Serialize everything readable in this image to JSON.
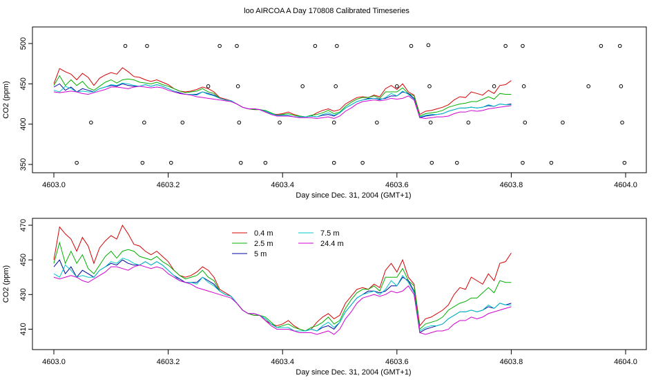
{
  "title": "loo AIRCOA A  Day 170808  Calibrated Timeseries",
  "colors": {
    "h04": "#d40000",
    "h25": "#00b000",
    "h5": "#0000a0",
    "h75": "#00c8c8",
    "h244": "#d000d0",
    "marker": "#000000"
  },
  "chart_data": [
    {
      "type": "line",
      "xlabel": "Day since Dec. 31, 2004 (GMT+1)",
      "ylabel": "CO2 (ppm)",
      "xlim": [
        4603.0,
        4604.0
      ],
      "ylim": [
        350,
        500
      ],
      "xticks": [
        4603.0,
        4603.2,
        4603.4,
        4603.6,
        4603.8,
        4604.0
      ],
      "xtick_labels": [
        "4603.0",
        "4603.2",
        "4603.4",
        "4603.6",
        "4603.8",
        "4604.0"
      ],
      "yticks": [
        350,
        400,
        450,
        500
      ],
      "ytick_labels": [
        "350",
        "400",
        "450",
        "500"
      ],
      "x_start": 4603.0,
      "x_step": 0.01,
      "series": [
        {
          "key": "h04",
          "values": [
            450,
            469,
            465,
            462,
            455,
            463,
            458,
            448,
            457,
            461,
            464,
            462,
            470,
            465,
            459,
            458,
            455,
            453,
            455,
            452,
            449,
            444,
            441,
            440,
            441,
            443,
            446,
            444,
            440,
            433,
            431,
            429,
            425,
            421,
            419,
            418,
            418,
            415,
            413,
            412,
            413,
            415,
            412,
            410,
            409,
            410,
            414,
            417,
            419,
            416,
            418,
            425,
            429,
            433,
            434,
            433,
            436,
            434,
            444,
            448,
            443,
            450,
            440,
            436,
            412,
            416,
            417,
            419,
            421,
            424,
            430,
            434,
            433,
            440,
            438,
            436,
            442,
            438,
            448,
            449,
            454
          ]
        },
        {
          "key": "h25",
          "values": [
            448,
            460,
            448,
            455,
            448,
            453,
            445,
            442,
            447,
            452,
            455,
            451,
            455,
            456,
            455,
            452,
            451,
            450,
            452,
            449,
            447,
            444,
            441,
            439,
            440,
            441,
            444,
            440,
            438,
            432,
            430,
            429,
            425,
            421,
            419,
            418,
            418,
            417,
            414,
            411,
            412,
            413,
            411,
            410,
            409,
            411,
            412,
            414,
            417,
            413,
            415,
            422,
            427,
            431,
            433,
            433,
            435,
            432,
            440,
            440,
            440,
            445,
            438,
            435,
            410,
            413,
            414,
            415,
            417,
            421,
            423,
            425,
            426,
            428,
            428,
            431,
            434,
            431,
            438,
            437,
            437
          ]
        },
        {
          "key": "h5",
          "values": [
            446,
            450,
            442,
            446,
            440,
            444,
            442,
            440,
            444,
            446,
            448,
            447,
            450,
            448,
            447,
            447,
            449,
            447,
            449,
            447,
            444,
            441,
            439,
            437,
            437,
            437,
            440,
            438,
            436,
            432,
            430,
            429,
            425,
            421,
            419,
            419,
            418,
            416,
            413,
            411,
            411,
            411,
            409,
            409,
            409,
            410,
            409,
            411,
            412,
            410,
            414,
            420,
            424,
            428,
            430,
            432,
            432,
            431,
            432,
            435,
            435,
            440,
            438,
            432,
            408,
            410,
            411,
            412,
            413,
            416,
            418,
            420,
            420,
            421,
            420,
            421,
            423,
            422,
            425,
            424,
            425
          ]
        },
        {
          "key": "h75",
          "values": [
            442,
            440,
            447,
            444,
            440,
            441,
            440,
            440,
            444,
            446,
            449,
            448,
            451,
            450,
            448,
            447,
            449,
            447,
            449,
            447,
            444,
            441,
            438,
            437,
            437,
            436,
            440,
            437,
            435,
            432,
            430,
            429,
            425,
            421,
            419,
            419,
            418,
            416,
            413,
            411,
            411,
            411,
            409,
            409,
            409,
            410,
            409,
            412,
            414,
            411,
            414,
            420,
            424,
            428,
            430,
            431,
            432,
            430,
            433,
            438,
            435,
            441,
            437,
            431,
            409,
            411,
            412,
            412,
            413,
            416,
            418,
            420,
            420,
            421,
            420,
            421,
            424,
            422,
            425,
            424,
            424
          ]
        },
        {
          "key": "h244",
          "values": [
            440,
            439,
            440,
            441,
            440,
            438,
            437,
            439,
            441,
            443,
            446,
            446,
            445,
            444,
            446,
            447,
            446,
            445,
            446,
            445,
            442,
            440,
            438,
            437,
            436,
            434,
            433,
            432,
            431,
            430,
            429,
            428,
            425,
            421,
            419,
            419,
            418,
            415,
            412,
            410,
            410,
            410,
            409,
            408,
            408,
            408,
            407,
            408,
            409,
            407,
            410,
            416,
            420,
            425,
            428,
            429,
            430,
            429,
            430,
            432,
            431,
            432,
            435,
            430,
            408,
            407,
            408,
            409,
            409,
            410,
            413,
            415,
            415,
            417,
            416,
            417,
            419,
            420,
            421,
            422,
            423
          ]
        }
      ],
      "markers": [
        {
          "x": 4603.04,
          "y": 352
        },
        {
          "x": 4603.065,
          "y": 402
        },
        {
          "x": 4603.125,
          "y": 497
        },
        {
          "x": 4603.155,
          "y": 352
        },
        {
          "x": 4603.158,
          "y": 402
        },
        {
          "x": 4603.163,
          "y": 497
        },
        {
          "x": 4603.205,
          "y": 352
        },
        {
          "x": 4603.225,
          "y": 402
        },
        {
          "x": 4603.27,
          "y": 447
        },
        {
          "x": 4603.29,
          "y": 497
        },
        {
          "x": 4603.32,
          "y": 497
        },
        {
          "x": 4603.322,
          "y": 447
        },
        {
          "x": 4603.324,
          "y": 402
        },
        {
          "x": 4603.327,
          "y": 352
        },
        {
          "x": 4603.37,
          "y": 352
        },
        {
          "x": 4603.395,
          "y": 402
        },
        {
          "x": 4603.435,
          "y": 447
        },
        {
          "x": 4603.457,
          "y": 497
        },
        {
          "x": 4603.49,
          "y": 402
        },
        {
          "x": 4603.493,
          "y": 447
        },
        {
          "x": 4603.495,
          "y": 497
        },
        {
          "x": 4603.49,
          "y": 352
        },
        {
          "x": 4603.54,
          "y": 352
        },
        {
          "x": 4603.565,
          "y": 402
        },
        {
          "x": 4603.6,
          "y": 447
        },
        {
          "x": 4603.625,
          "y": 497
        },
        {
          "x": 4603.655,
          "y": 498
        },
        {
          "x": 4603.657,
          "y": 447
        },
        {
          "x": 4603.659,
          "y": 402
        },
        {
          "x": 4603.661,
          "y": 352
        },
        {
          "x": 4603.705,
          "y": 352
        },
        {
          "x": 4603.725,
          "y": 402
        },
        {
          "x": 4603.77,
          "y": 447
        },
        {
          "x": 4603.79,
          "y": 497
        },
        {
          "x": 4603.82,
          "y": 497
        },
        {
          "x": 4603.822,
          "y": 447
        },
        {
          "x": 4603.824,
          "y": 402
        },
        {
          "x": 4603.82,
          "y": 352
        },
        {
          "x": 4603.87,
          "y": 352
        },
        {
          "x": 4603.89,
          "y": 402
        },
        {
          "x": 4603.935,
          "y": 447
        },
        {
          "x": 4603.957,
          "y": 497
        },
        {
          "x": 4603.99,
          "y": 497
        },
        {
          "x": 4603.992,
          "y": 447
        },
        {
          "x": 4603.994,
          "y": 402
        },
        {
          "x": 4603.998,
          "y": 352
        }
      ]
    },
    {
      "type": "line",
      "xlabel": "Day since Dec. 31, 2004 (GMT+1)",
      "ylabel": "CO2 (ppm)",
      "xlim": [
        4603.0,
        4604.0
      ],
      "ylim": [
        405,
        470
      ],
      "xticks": [
        4603.0,
        4603.2,
        4603.4,
        4603.6,
        4603.8,
        4604.0
      ],
      "xtick_labels": [
        "4603.0",
        "4603.2",
        "4603.4",
        "4603.6",
        "4603.8",
        "4604.0"
      ],
      "yticks": [
        410,
        430,
        450,
        470
      ],
      "ytick_labels": [
        "410",
        "430",
        "450",
        "470"
      ],
      "legend": {
        "position": "top-left",
        "entries": [
          {
            "key": "h04",
            "label": "0.4 m"
          },
          {
            "key": "h25",
            "label": "2.5 m"
          },
          {
            "key": "h5",
            "label": "5 m"
          },
          {
            "key": "h75",
            "label": "7.5 m"
          },
          {
            "key": "h244",
            "label": "24.4 m"
          }
        ]
      },
      "x_start": 4603.0,
      "x_step": 0.01
    }
  ]
}
